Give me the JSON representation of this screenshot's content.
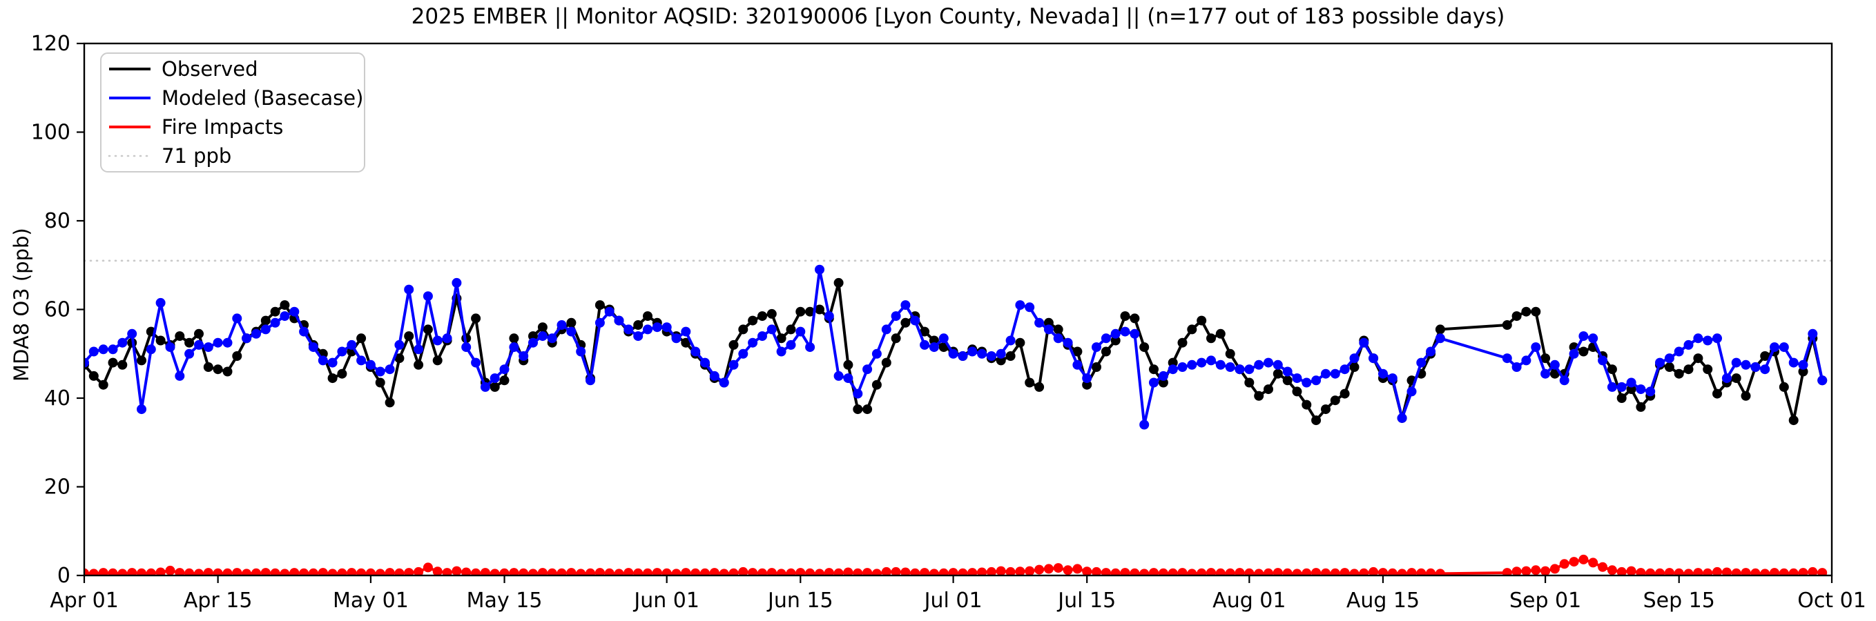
{
  "title": "2025 EMBER || Monitor AQSID: 320190006 [Lyon County, Nevada] || (n=177 out of 183 possible days)",
  "axes": {
    "ylabel": "MDA8 O3 (ppb)",
    "ylim": [
      0,
      120
    ],
    "y_ticks": [
      0,
      20,
      40,
      60,
      80,
      100,
      120
    ],
    "x_total_days": 183,
    "x_ticks": [
      {
        "day": 0,
        "label": "Apr 01"
      },
      {
        "day": 14,
        "label": "Apr 15"
      },
      {
        "day": 30,
        "label": "May 01"
      },
      {
        "day": 44,
        "label": "May 15"
      },
      {
        "day": 61,
        "label": "Jun 01"
      },
      {
        "day": 75,
        "label": "Jun 15"
      },
      {
        "day": 91,
        "label": "Jul 01"
      },
      {
        "day": 105,
        "label": "Jul 15"
      },
      {
        "day": 122,
        "label": "Aug 01"
      },
      {
        "day": 136,
        "label": "Aug 15"
      },
      {
        "day": 153,
        "label": "Sep 01"
      },
      {
        "day": 167,
        "label": "Sep 15"
      },
      {
        "day": 183,
        "label": "Oct 01"
      }
    ]
  },
  "refline": {
    "value": 71,
    "label": "71 ppb",
    "color": "#c9c9c9",
    "style": "dotted"
  },
  "legend": {
    "position": "upper-left",
    "entries": [
      {
        "label": "Observed",
        "color": "#000000",
        "style": "solid"
      },
      {
        "label": "Modeled (Basecase)",
        "color": "#0000ff",
        "style": "solid"
      },
      {
        "label": "Fire Impacts",
        "color": "#ff0000",
        "style": "solid"
      },
      {
        "label": "71 ppb",
        "color": "#c9c9c9",
        "style": "dotted"
      }
    ]
  },
  "chart_data": {
    "type": "line",
    "title": "2025 EMBER || Monitor AQSID: 320190006 [Lyon County, Nevada] || (n=177 out of 183 possible days)",
    "xlabel": "",
    "ylabel": "MDA8 O3 (ppb)",
    "ylim": [
      0,
      120
    ],
    "x_unit": "day",
    "x_start": "Apr 01",
    "x_end": "Sep 30",
    "x_note": "daily values, day 0 = Apr 01; null = missing observation day (6 missing days, Aug 22-27)",
    "grid": false,
    "legend_position": "upper left",
    "refline_ppb": 71,
    "series": [
      {
        "name": "Observed",
        "color": "#000000",
        "marker": "circle",
        "values": [
          47.5,
          45,
          43,
          48,
          47.5,
          52.5,
          48.5,
          55,
          53,
          52,
          54,
          52.5,
          54.5,
          47,
          46.5,
          46,
          49.5,
          53.5,
          55,
          57.5,
          59.5,
          61,
          58,
          56.5,
          52,
          50,
          44.5,
          45.5,
          50.5,
          53.5,
          47,
          43.5,
          39,
          49,
          54,
          47.5,
          55.5,
          48.5,
          53,
          62.5,
          53.5,
          58,
          43.5,
          42.5,
          44,
          53.5,
          48.5,
          54,
          56,
          52.5,
          55.5,
          57,
          52,
          44.5,
          61,
          60,
          57.5,
          55,
          56.5,
          58.5,
          57,
          55,
          54,
          52.5,
          50,
          47.5,
          44.5,
          43.5,
          52,
          55.5,
          57.5,
          58.5,
          59,
          53.5,
          55.5,
          59.5,
          59.5,
          60,
          58,
          66,
          47.5,
          37.5,
          37.5,
          43,
          48,
          53.5,
          57,
          58.5,
          55,
          53,
          51.5,
          50.5,
          49.5,
          51,
          50.5,
          49,
          48.5,
          49.5,
          52.5,
          43.5,
          42.5,
          57,
          55.5,
          52,
          50.5,
          43,
          47,
          50.5,
          53,
          58.5,
          58,
          51.5,
          46.5,
          43.5,
          48,
          52.5,
          55.5,
          57.5,
          53.5,
          54.5,
          50,
          46.5,
          43.5,
          40.5,
          42,
          45.5,
          44,
          41.5,
          38.5,
          35,
          37.5,
          39.5,
          41,
          47,
          53,
          49,
          44.5,
          44,
          35.5,
          44,
          45.5,
          50,
          55.5,
          null,
          null,
          null,
          null,
          null,
          null,
          56.5,
          58.5,
          59.5,
          59.5,
          49,
          45.5,
          45.5,
          51.5,
          50.5,
          51.5,
          49.5,
          46.5,
          40,
          42,
          38,
          40.5,
          47.5,
          47,
          45.5,
          46.5,
          49,
          46.5,
          41,
          43.5,
          44.5,
          40.5,
          47,
          49.5,
          50.5,
          42.5,
          35,
          46,
          53.5,
          44
        ]
      },
      {
        "name": "Modeled (Basecase)",
        "color": "#0000ff",
        "marker": "circle",
        "values": [
          48,
          50.5,
          51,
          51,
          52.5,
          54.5,
          37.5,
          51,
          61.5,
          51.5,
          45,
          50,
          52,
          51.5,
          52.5,
          52.5,
          58,
          53.5,
          54.5,
          55.5,
          57,
          58.5,
          59.5,
          55,
          51.5,
          48.5,
          48,
          50.5,
          52,
          48.5,
          47.5,
          46,
          46.5,
          52,
          64.5,
          51,
          63,
          53,
          53.5,
          66,
          51.5,
          48,
          42.5,
          44.5,
          46.5,
          51.5,
          49.5,
          52.5,
          54,
          53.5,
          56.5,
          55,
          50.5,
          44,
          57,
          59.5,
          57.5,
          55.5,
          54,
          55.5,
          56,
          56,
          53.5,
          55,
          50.5,
          48,
          45,
          43.5,
          47.5,
          50,
          52.5,
          54,
          55.5,
          50.5,
          52,
          55,
          51.5,
          69,
          58.5,
          45,
          44.5,
          41,
          46.5,
          50,
          55.5,
          58.5,
          61,
          57.5,
          52,
          51.5,
          53.5,
          50,
          49.5,
          50.5,
          50,
          49.5,
          50,
          53,
          61,
          60.5,
          57,
          55.5,
          53.5,
          52.5,
          47.5,
          44.5,
          51.5,
          53.5,
          54.5,
          55,
          54.5,
          34,
          43.5,
          45,
          46.5,
          47,
          47.5,
          48,
          48.5,
          47.5,
          47,
          46.5,
          46.5,
          47.5,
          48,
          47.5,
          46,
          44.5,
          43.5,
          44,
          45.5,
          45.5,
          46.5,
          49,
          52.5,
          49,
          45.5,
          44.5,
          35.5,
          41.5,
          48,
          50.5,
          53.5,
          null,
          null,
          null,
          null,
          null,
          null,
          49,
          47,
          48.5,
          51.5,
          45.5,
          47.5,
          44,
          50,
          54,
          53.5,
          48.5,
          42.5,
          42.5,
          43.5,
          42,
          41.5,
          48,
          49,
          50.5,
          52,
          53.5,
          53,
          53.5,
          44.5,
          48,
          47.5,
          47,
          46.5,
          51.5,
          51.5,
          48,
          47.5,
          54.5,
          44
        ]
      },
      {
        "name": "Fire Impacts",
        "color": "#ff0000",
        "marker": "circle",
        "values": [
          0.5,
          0.4,
          0.6,
          0.5,
          0.4,
          0.6,
          0.5,
          0.5,
          0.7,
          1.1,
          0.6,
          0.5,
          0.4,
          0.6,
          0.5,
          0.5,
          0.6,
          0.4,
          0.5,
          0.6,
          0.5,
          0.4,
          0.6,
          0.5,
          0.5,
          0.6,
          0.4,
          0.5,
          0.6,
          0.5,
          0.5,
          0.4,
          0.6,
          0.5,
          0.6,
          0.8,
          1.8,
          0.9,
          0.6,
          1,
          0.7,
          0.5,
          0.6,
          0.4,
          0.5,
          0.6,
          0.5,
          0.4,
          0.6,
          0.5,
          0.5,
          0.6,
          0.4,
          0.5,
          0.6,
          0.5,
          0.4,
          0.6,
          0.5,
          0.5,
          0.6,
          0.5,
          0.4,
          0.6,
          0.5,
          0.5,
          0.6,
          0.4,
          0.5,
          0.8,
          0.6,
          0.5,
          0.6,
          0.4,
          0.5,
          0.6,
          0.5,
          0.4,
          0.6,
          0.5,
          0.7,
          0.5,
          0.6,
          0.4,
          0.8,
          0.8,
          0.7,
          0.5,
          0.6,
          0.4,
          0.5,
          0.6,
          0.5,
          0.6,
          0.7,
          0.8,
          1,
          0.8,
          0.9,
          1,
          1.3,
          1.5,
          1.7,
          1.2,
          1.5,
          0.9,
          0.8,
          0.6,
          0.5,
          0.6,
          0.5,
          0.4,
          0.6,
          0.5,
          0.5,
          0.6,
          0.4,
          0.5,
          0.6,
          0.5,
          0.5,
          0.6,
          0.5,
          0.4,
          0.5,
          0.6,
          0.5,
          0.4,
          0.5,
          0.6,
          0.5,
          0.5,
          0.6,
          0.4,
          0.5,
          0.8,
          0.6,
          0.5,
          0.4,
          0.6,
          0.5,
          0.5,
          0.4,
          null,
          null,
          null,
          null,
          null,
          null,
          0.6,
          0.9,
          1,
          1.2,
          1,
          1.5,
          2.6,
          3.1,
          3.6,
          2.9,
          1.9,
          1.2,
          0.8,
          1,
          0.6,
          0.5,
          0.5,
          0.6,
          0.5,
          0.4,
          0.6,
          0.5,
          0.8,
          0.7,
          0.5,
          0.6,
          0.5,
          0.4,
          0.6,
          0.5,
          0.5,
          0.6,
          0.8,
          0.6
        ]
      }
    ]
  }
}
